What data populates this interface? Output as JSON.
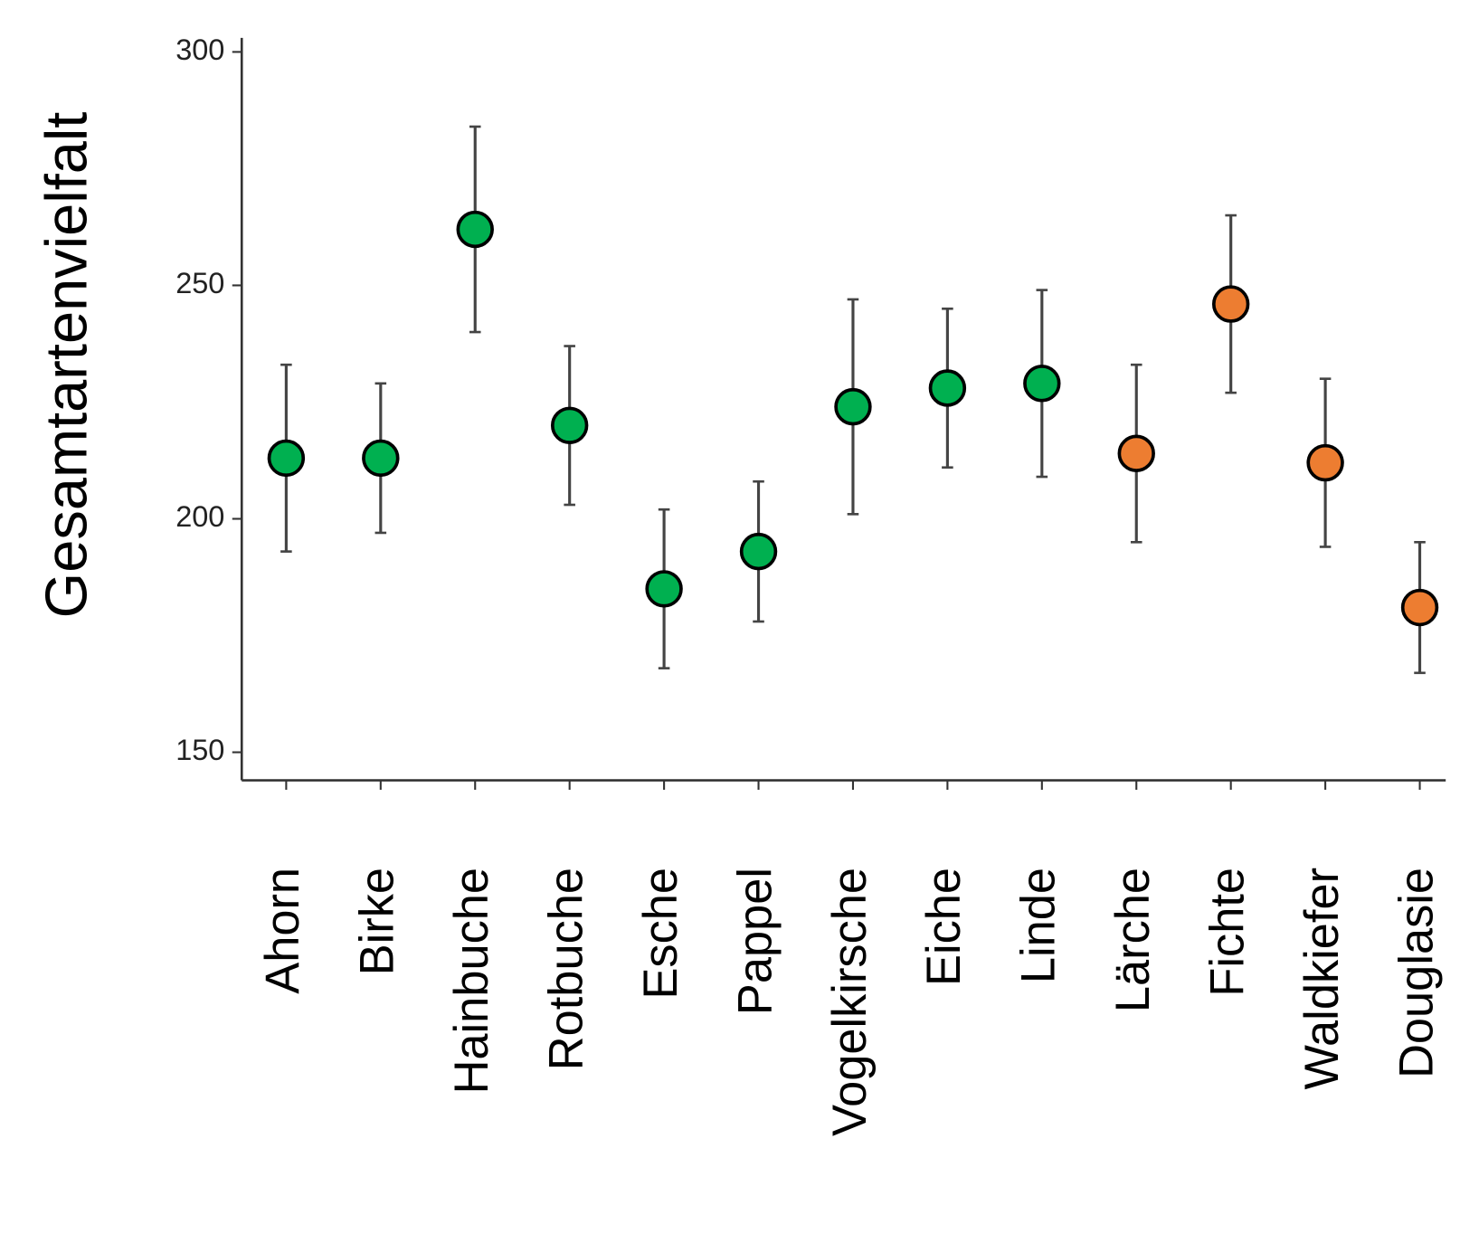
{
  "chart_data": {
    "type": "errorbar",
    "y_label": "Gesamtartenvielfalt",
    "categories": [
      "Ahorn",
      "Birke",
      "Hainbuche",
      "Rotbuche",
      "Esche",
      "Pappel",
      "Vogelkirsche",
      "Eiche",
      "Linde",
      "Lärche",
      "Fichte",
      "Waldkiefer",
      "Douglasie"
    ],
    "values": [
      213,
      213,
      262,
      220,
      185,
      193,
      224,
      228,
      229,
      214,
      246,
      212,
      181
    ],
    "errors": [
      20,
      16,
      22,
      17,
      17,
      15,
      23,
      17,
      20,
      19,
      19,
      18,
      14
    ],
    "colors": [
      "#00b050",
      "#00b050",
      "#00b050",
      "#00b050",
      "#00b050",
      "#00b050",
      "#00b050",
      "#00b050",
      "#00b050",
      "#ed7d31",
      "#ed7d31",
      "#ed7d31",
      "#ed7d31"
    ],
    "ylim": [
      144,
      303
    ],
    "yticks": [
      150,
      200,
      250,
      300
    ],
    "grid": false
  }
}
